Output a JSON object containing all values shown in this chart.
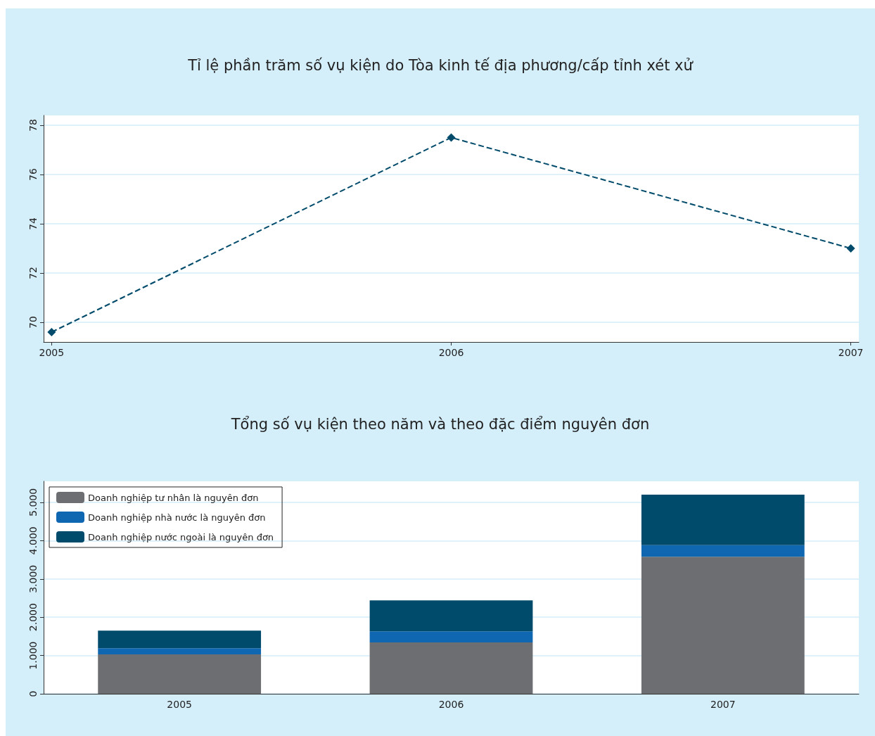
{
  "chart_data": [
    {
      "type": "line",
      "title": "Tỉ lệ phần trăm số vụ kiện do Tòa kinh tế địa phương/cấp tỉnh xét xử",
      "x": [
        2005,
        2006,
        2007
      ],
      "values": [
        69.6,
        77.5,
        73.0
      ],
      "color": "#004b6b",
      "marker": "diamond",
      "line_style": "dashed",
      "xlim": [
        2004.98,
        2007.02
      ],
      "xticks": [
        2005,
        2006,
        2007
      ],
      "ylim": [
        69.2,
        78.4
      ],
      "yticks": [
        70,
        72,
        74,
        76,
        78
      ],
      "grid": "y",
      "legend": false
    },
    {
      "type": "bar",
      "title": "Tổng số vụ kiện theo năm và theo đặc điểm nguyên đơn",
      "categories": [
        "2005",
        "2006",
        "2007"
      ],
      "stacked": true,
      "series": [
        {
          "name": "Doanh nghiệp tư nhân là nguyên đơn",
          "color": "#6d6e71",
          "values": [
            1030,
            1340,
            3580
          ]
        },
        {
          "name": "Doanh nghiệp nhà nước là nguyên đơn",
          "color": "#0f67b1",
          "values": [
            160,
            290,
            300
          ]
        },
        {
          "name": "Doanh nghiệp nước ngoài là nguyên đơn",
          "color": "#004b6b",
          "values": [
            460,
            810,
            1320
          ]
        }
      ],
      "ylim": [
        0,
        5550
      ],
      "yticks": [
        {
          "value": 0,
          "label": "0"
        },
        {
          "value": 1000,
          "label": "1.000"
        },
        {
          "value": 2000,
          "label": "2.000"
        },
        {
          "value": 3000,
          "label": "3.000"
        },
        {
          "value": 4000,
          "label": "4.000"
        },
        {
          "value": 5000,
          "label": "5.000"
        }
      ],
      "grid": "y",
      "legend": "top left"
    }
  ]
}
